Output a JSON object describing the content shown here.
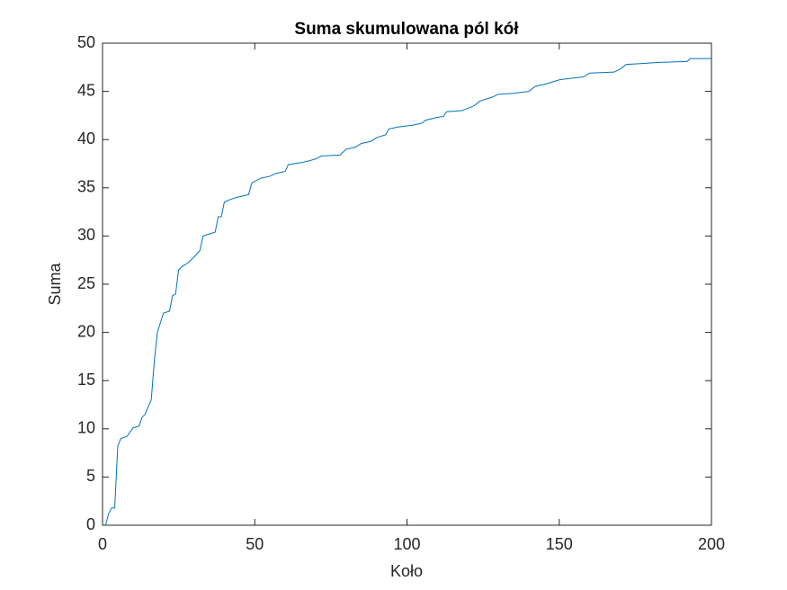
{
  "chart_data": {
    "type": "line",
    "title": "Suma skumulowana pól kół",
    "x_label": "Koło",
    "y_label": "Suma",
    "x": [
      1,
      2,
      3,
      4,
      5,
      6,
      8,
      10,
      12,
      13,
      14,
      15,
      16,
      17,
      18,
      19,
      20,
      22,
      23,
      24,
      25,
      26,
      28,
      30,
      32,
      33,
      35,
      37,
      38,
      39,
      40,
      42,
      44,
      48,
      49,
      52,
      55,
      57,
      60,
      61,
      65,
      68,
      70,
      72,
      78,
      80,
      83,
      85,
      88,
      90,
      93,
      94,
      97,
      102,
      105,
      106,
      110,
      112,
      113,
      118,
      122,
      124,
      128,
      130,
      135,
      140,
      142,
      146,
      150,
      155,
      158,
      160,
      168,
      170,
      172,
      178,
      182,
      192,
      193,
      200
    ],
    "series": [
      {
        "name": "Suma",
        "color": "#0072bd",
        "values": [
          0,
          1.2,
          1.8,
          1.8,
          8.2,
          9.0,
          9.2,
          10.1,
          10.3,
          11.2,
          11.5,
          12.3,
          13,
          17,
          20,
          21,
          22,
          22.2,
          23.8,
          24,
          26.5,
          26.8,
          27.2,
          27.8,
          28.5,
          30,
          30.2,
          30.4,
          32,
          32,
          33.5,
          33.8,
          34,
          34.3,
          35.5,
          36,
          36.2,
          36.5,
          36.7,
          37.4,
          37.6,
          37.8,
          38,
          38.3,
          38.4,
          39,
          39.2,
          39.6,
          39.8,
          40.2,
          40.5,
          41.1,
          41.3,
          41.5,
          41.7,
          42,
          42.3,
          42.4,
          42.9,
          43,
          43.5,
          44,
          44.4,
          44.7,
          44.8,
          45,
          45.5,
          45.8,
          46.2,
          46.4,
          46.5,
          46.9,
          47,
          47.3,
          47.8,
          47.9,
          48,
          48.1,
          48.4,
          48.4
        ]
      }
    ],
    "xlim": [
      0,
      200
    ],
    "xticks": [
      0,
      50,
      100,
      150,
      200
    ],
    "ylim": [
      0,
      50
    ],
    "yticks": [
      0,
      5,
      10,
      15,
      20,
      25,
      30,
      35,
      40,
      45,
      50
    ],
    "grid": false
  }
}
